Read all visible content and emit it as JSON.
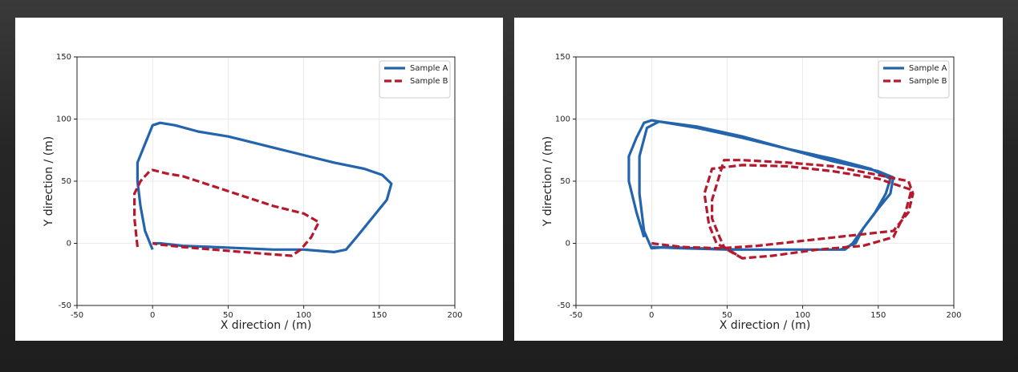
{
  "chart_data": [
    {
      "type": "line",
      "xlabel": "X direction / (m)",
      "ylabel": "Y direction / (m)",
      "xlim": [
        -50,
        200
      ],
      "xticks": [
        -50,
        0,
        50,
        100,
        150,
        200
      ],
      "ylim": [
        -50,
        150
      ],
      "yticks": [
        -50,
        0,
        50,
        100,
        150
      ],
      "grid": true,
      "legend": "upper right",
      "series": [
        {
          "name": "Sample A",
          "color": "#2464ad",
          "linestyle": "solid",
          "x": [
            0,
            -5,
            -8,
            -10,
            -10,
            -5,
            0,
            5,
            15,
            30,
            50,
            60,
            80,
            100,
            120,
            140,
            152,
            158,
            155,
            145,
            135,
            128,
            120,
            100,
            80,
            60,
            40,
            20,
            5,
            0
          ],
          "values": [
            -5,
            10,
            30,
            50,
            65,
            80,
            95,
            97,
            95,
            90,
            86,
            83,
            77,
            71,
            65,
            60,
            55,
            48,
            35,
            20,
            5,
            -5,
            -7,
            -5,
            -5,
            -4,
            -3,
            -2,
            0,
            0
          ]
        },
        {
          "name": "Sample B",
          "color": "#b5192e",
          "linestyle": "dashed",
          "x": [
            -10,
            -12,
            -12,
            -8,
            -2,
            0,
            10,
            20,
            40,
            60,
            80,
            100,
            110,
            105,
            98,
            92,
            80,
            60,
            40,
            20,
            5,
            0
          ],
          "values": [
            -3,
            20,
            40,
            50,
            58,
            59,
            56,
            54,
            46,
            38,
            30,
            24,
            17,
            5,
            -5,
            -10,
            -9,
            -7,
            -5,
            -3,
            -1,
            0
          ]
        }
      ]
    },
    {
      "type": "line",
      "xlabel": "X direction / (m)",
      "ylabel": "Y direction / (m)",
      "xlim": [
        -50,
        200
      ],
      "xticks": [
        -50,
        0,
        50,
        100,
        150,
        200
      ],
      "ylim": [
        -50,
        150
      ],
      "yticks": [
        -50,
        0,
        50,
        100,
        150
      ],
      "grid": true,
      "legend": "upper right",
      "series": [
        {
          "name": "Sample A",
          "color": "#2464ad",
          "linestyle": "solid",
          "x": [
            -5,
            -10,
            -15,
            -15,
            -10,
            -5,
            0,
            10,
            30,
            60,
            90,
            120,
            145,
            158,
            155,
            148,
            140,
            133,
            128,
            100,
            60,
            30,
            10,
            0,
            -5,
            -8,
            -8,
            -3,
            5,
            30,
            60,
            90,
            120,
            150,
            160,
            158,
            150,
            140,
            135,
            125,
            90,
            50,
            20,
            0
          ],
          "values": [
            5,
            25,
            50,
            70,
            85,
            97,
            99,
            97,
            93,
            85,
            76,
            68,
            60,
            52,
            40,
            25,
            12,
            0,
            -5,
            -5,
            -5,
            -4,
            -3,
            -4,
            10,
            40,
            70,
            93,
            98,
            94,
            86,
            76,
            66,
            58,
            53,
            40,
            28,
            12,
            0,
            -5,
            -5,
            -5,
            -4,
            -3
          ]
        },
        {
          "name": "Sample B",
          "color": "#b5192e",
          "linestyle": "dashed",
          "x": [
            0,
            20,
            45,
            70,
            100,
            130,
            160,
            170,
            173,
            170,
            150,
            120,
            90,
            60,
            48,
            45,
            40,
            40,
            45,
            48,
            60,
            80,
            110,
            140,
            160,
            168,
            172,
            150,
            120,
            90,
            60,
            40,
            35,
            38,
            43,
            50,
            60
          ],
          "values": [
            0,
            -3,
            -4,
            -2,
            2,
            6,
            10,
            25,
            40,
            50,
            55,
            62,
            65,
            67,
            67,
            55,
            35,
            20,
            5,
            -3,
            -12,
            -10,
            -5,
            -2,
            5,
            25,
            43,
            52,
            58,
            62,
            63,
            60,
            40,
            15,
            0,
            -5,
            -12
          ]
        }
      ]
    }
  ]
}
